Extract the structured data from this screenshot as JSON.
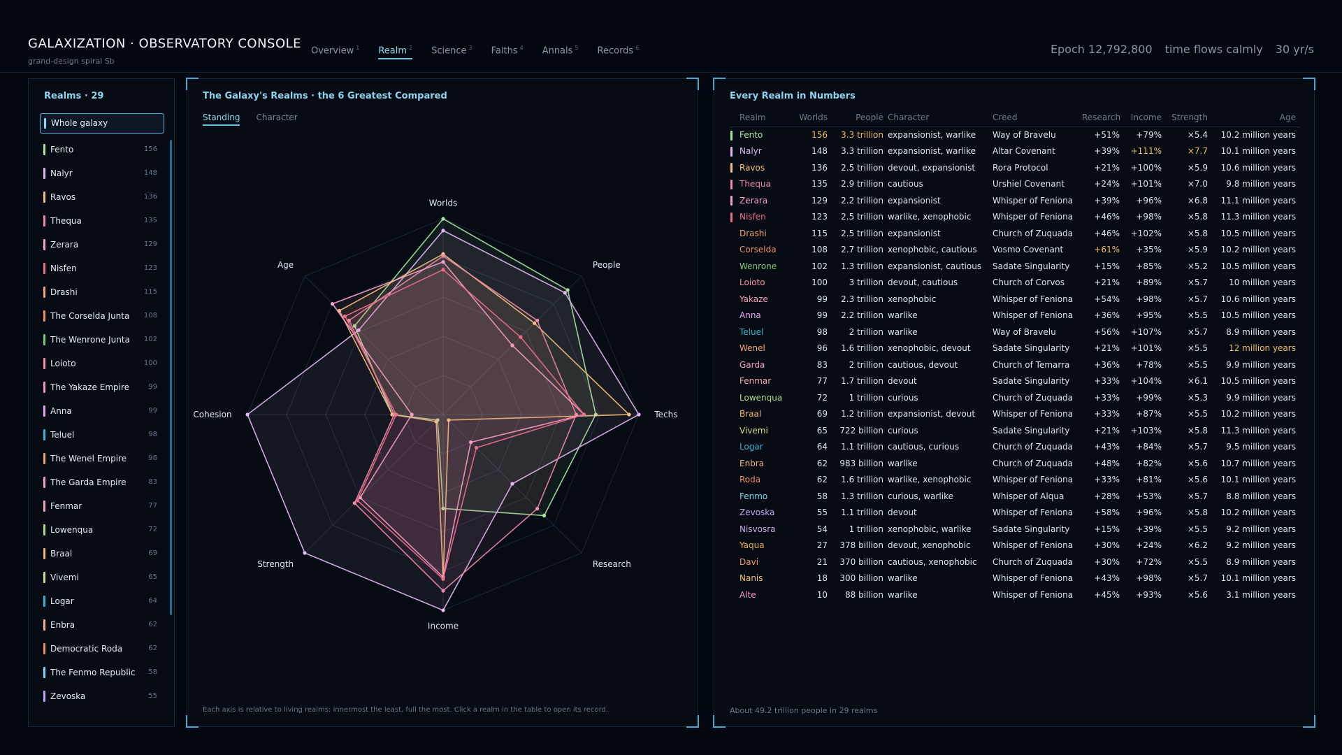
{
  "header": {
    "title": "GALAXIZATION · OBSERVATORY CONSOLE",
    "subtitle": "grand-design spiral Sb",
    "epoch": "Epoch 12,792,800",
    "flow": "time flows calmly",
    "rate": "30 yr/s"
  },
  "nav": {
    "tabs": [
      {
        "label": "Overview",
        "key": "1"
      },
      {
        "label": "Realm",
        "key": "2"
      },
      {
        "label": "Science",
        "key": "3"
      },
      {
        "label": "Faiths",
        "key": "4"
      },
      {
        "label": "Annals",
        "key": "5"
      },
      {
        "label": "Records",
        "key": "6"
      }
    ],
    "active": "Realm"
  },
  "sidebar": {
    "title": "Realms · 29",
    "whole_label": "Whole galaxy",
    "items": [
      {
        "name": "Fento",
        "worlds": "156",
        "color": "#a8e6a1"
      },
      {
        "name": "Nalyr",
        "worlds": "148",
        "color": "#e2b8f2"
      },
      {
        "name": "Ravos",
        "worlds": "136",
        "color": "#f4c27a"
      },
      {
        "name": "Thequa",
        "worlds": "135",
        "color": "#f08aa8"
      },
      {
        "name": "Zerara",
        "worlds": "129",
        "color": "#f7a2c8"
      },
      {
        "name": "Nisfen",
        "worlds": "123",
        "color": "#ee6f8b"
      },
      {
        "name": "Drashi",
        "worlds": "115",
        "color": "#f3a56a"
      },
      {
        "name": "The Corselda Junta",
        "worlds": "108",
        "color": "#f09060"
      },
      {
        "name": "The Wenrone Junta",
        "worlds": "102",
        "color": "#7fca7a"
      },
      {
        "name": "Loioto",
        "worlds": "100",
        "color": "#f58fa6"
      },
      {
        "name": "The Yakaze Empire",
        "worlds": "99",
        "color": "#f79ab8"
      },
      {
        "name": "Anna",
        "worlds": "99",
        "color": "#e6a6ee"
      },
      {
        "name": "Teluel",
        "worlds": "98",
        "color": "#36b5d3"
      },
      {
        "name": "The Wenel Empire",
        "worlds": "96",
        "color": "#f5a070"
      },
      {
        "name": "The Garda Empire",
        "worlds": "83",
        "color": "#f4a0be"
      },
      {
        "name": "Fenmar",
        "worlds": "77",
        "color": "#f3a6b6"
      },
      {
        "name": "Lowenqua",
        "worlds": "72",
        "color": "#b2dc88"
      },
      {
        "name": "Braal",
        "worlds": "69",
        "color": "#f3b867"
      },
      {
        "name": "Vivemi",
        "worlds": "65",
        "color": "#d3df7e"
      },
      {
        "name": "Logar",
        "worlds": "64",
        "color": "#36b5d3"
      },
      {
        "name": "Enbra",
        "worlds": "62",
        "color": "#f3b28a"
      },
      {
        "name": "Democratic Roda",
        "worlds": "62",
        "color": "#f08e62"
      },
      {
        "name": "The Fenmo Republic",
        "worlds": "58",
        "color": "#7ad8f2"
      },
      {
        "name": "Zevoska",
        "worlds": "55",
        "color": "#c4a8f4"
      }
    ]
  },
  "radar": {
    "title": "The Galaxy's Realms · the 6 Greatest Compared",
    "tabs": [
      "Standing",
      "Character"
    ],
    "active_tab": "Standing",
    "axes": [
      "Worlds",
      "People",
      "Techs",
      "Research",
      "Income",
      "Strength",
      "Cohesion",
      "Age"
    ],
    "footnote": "Each axis is relative to living realms: innermost the least, full the most. Click a realm in the table to open its record."
  },
  "chart_data": {
    "type": "radar",
    "axes": [
      "Worlds",
      "People",
      "Techs",
      "Research",
      "Income",
      "Strength",
      "Cohesion",
      "Age"
    ],
    "range": [
      0,
      1
    ],
    "series": [
      {
        "name": "Fento",
        "color": "#a8e6a1",
        "values": [
          1.0,
          0.9,
          0.78,
          0.73,
          0.48,
          0.04,
          0.26,
          0.64
        ]
      },
      {
        "name": "Nalyr",
        "color": "#e2b8f2",
        "values": [
          0.94,
          0.88,
          1.0,
          0.5,
          1.0,
          1.0,
          1.0,
          0.61
        ]
      },
      {
        "name": "Ravos",
        "color": "#f4c27a",
        "values": [
          0.82,
          0.66,
          0.95,
          0.04,
          0.84,
          0.05,
          0.26,
          0.75
        ]
      },
      {
        "name": "Thequa",
        "color": "#f08aa8",
        "values": [
          0.81,
          0.68,
          0.68,
          0.68,
          0.9,
          0.64,
          0.25,
          0.68
        ]
      },
      {
        "name": "Zerara",
        "color": "#f7a2c8",
        "values": [
          0.78,
          0.5,
          0.72,
          0.2,
          0.83,
          0.6,
          0.16,
          0.8
        ]
      },
      {
        "name": "Nisfen",
        "color": "#ee6f8b",
        "values": [
          0.74,
          0.56,
          0.72,
          0.24,
          0.84,
          0.62,
          0.24,
          0.71
        ]
      }
    ]
  },
  "table": {
    "title": "Every Realm in Numbers",
    "columns": [
      "Realm",
      "Worlds",
      "People",
      "Character",
      "Creed",
      "Research",
      "Income",
      "Strength",
      "Age"
    ],
    "rows": [
      {
        "name": "Fento",
        "color": "#a8e6a1",
        "sel": true,
        "worlds": "156",
        "people": "3.3 trillion",
        "character": "expansionist, warlike",
        "creed": "Way of Bravelu",
        "research": "+51%",
        "income": "+79%",
        "strength": "×5.4",
        "age": "10.2 million years",
        "hl": [
          "worlds",
          "people"
        ]
      },
      {
        "name": "Nalyr",
        "color": "#e2b8f2",
        "sel": true,
        "worlds": "148",
        "people": "3.3 trillion",
        "character": "expansionist, warlike",
        "creed": "Altar Covenant",
        "research": "+39%",
        "income": "+111%",
        "strength": "×7.7",
        "age": "10.1 million years",
        "hl": [
          "income",
          "strength"
        ]
      },
      {
        "name": "Ravos",
        "color": "#f4c27a",
        "sel": true,
        "worlds": "136",
        "people": "2.5 trillion",
        "character": "devout, expansionist",
        "creed": "Rora Protocol",
        "research": "+21%",
        "income": "+100%",
        "strength": "×5.9",
        "age": "10.6 million years",
        "hl": []
      },
      {
        "name": "Thequa",
        "color": "#f08aa8",
        "sel": true,
        "worlds": "135",
        "people": "2.9 trillion",
        "character": "cautious",
        "creed": "Urshiel Covenant",
        "research": "+24%",
        "income": "+101%",
        "strength": "×7.0",
        "age": "9.8 million years",
        "hl": []
      },
      {
        "name": "Zerara",
        "color": "#f7a2c8",
        "sel": true,
        "worlds": "129",
        "people": "2.2 trillion",
        "character": "expansionist",
        "creed": "Whisper of Feniona",
        "research": "+39%",
        "income": "+96%",
        "strength": "×6.8",
        "age": "11.1 million years",
        "hl": []
      },
      {
        "name": "Nisfen",
        "color": "#ee6f8b",
        "sel": true,
        "worlds": "123",
        "people": "2.5 trillion",
        "character": "warlike, xenophobic",
        "creed": "Whisper of Feniona",
        "research": "+46%",
        "income": "+98%",
        "strength": "×5.8",
        "age": "11.3 million years",
        "hl": []
      },
      {
        "name": "Drashi",
        "color": "#f3a56a",
        "sel": false,
        "worlds": "115",
        "people": "2.5 trillion",
        "character": "expansionist",
        "creed": "Church of Zuquada",
        "research": "+46%",
        "income": "+102%",
        "strength": "×5.8",
        "age": "10.5 million years",
        "hl": []
      },
      {
        "name": "Corselda",
        "color": "#f09060",
        "sel": false,
        "worlds": "108",
        "people": "2.7 trillion",
        "character": "xenophobic, cautious",
        "creed": "Vosmo Covenant",
        "research": "+61%",
        "income": "+35%",
        "strength": "×5.9",
        "age": "10.2 million years",
        "hl": [
          "research"
        ]
      },
      {
        "name": "Wenrone",
        "color": "#7fca7a",
        "sel": false,
        "worlds": "102",
        "people": "1.3 trillion",
        "character": "expansionist, cautious",
        "creed": "Sadate Singularity",
        "research": "+15%",
        "income": "+85%",
        "strength": "×5.2",
        "age": "10.5 million years",
        "hl": []
      },
      {
        "name": "Loioto",
        "color": "#f58fa6",
        "sel": false,
        "worlds": "100",
        "people": "3 trillion",
        "character": "devout, cautious",
        "creed": "Church of Corvos",
        "research": "+21%",
        "income": "+89%",
        "strength": "×5.7",
        "age": "10 million years",
        "hl": []
      },
      {
        "name": "Yakaze",
        "color": "#f79ab8",
        "sel": false,
        "worlds": "99",
        "people": "2.3 trillion",
        "character": "xenophobic",
        "creed": "Whisper of Feniona",
        "research": "+54%",
        "income": "+98%",
        "strength": "×5.7",
        "age": "10.6 million years",
        "hl": []
      },
      {
        "name": "Anna",
        "color": "#e6a6ee",
        "sel": false,
        "worlds": "99",
        "people": "2.2 trillion",
        "character": "warlike",
        "creed": "Whisper of Feniona",
        "research": "+36%",
        "income": "+95%",
        "strength": "×5.5",
        "age": "10.5 million years",
        "hl": []
      },
      {
        "name": "Teluel",
        "color": "#36b5d3",
        "sel": false,
        "worlds": "98",
        "people": "2 trillion",
        "character": "warlike",
        "creed": "Way of Bravelu",
        "research": "+56%",
        "income": "+107%",
        "strength": "×5.7",
        "age": "8.9 million years",
        "hl": []
      },
      {
        "name": "Wenel",
        "color": "#f5a070",
        "sel": false,
        "worlds": "96",
        "people": "1.6 trillion",
        "character": "xenophobic, devout",
        "creed": "Sadate Singularity",
        "research": "+21%",
        "income": "+101%",
        "strength": "×5.5",
        "age": "12 million years",
        "hl": [
          "age"
        ]
      },
      {
        "name": "Garda",
        "color": "#f4a0be",
        "sel": false,
        "worlds": "83",
        "people": "2 trillion",
        "character": "cautious, devout",
        "creed": "Church of Temarra",
        "research": "+36%",
        "income": "+78%",
        "strength": "×5.5",
        "age": "9.9 million years",
        "hl": []
      },
      {
        "name": "Fenmar",
        "color": "#f3a6b6",
        "sel": false,
        "worlds": "77",
        "people": "1.7 trillion",
        "character": "devout",
        "creed": "Sadate Singularity",
        "research": "+33%",
        "income": "+104%",
        "strength": "×6.1",
        "age": "10.5 million years",
        "hl": []
      },
      {
        "name": "Lowenqua",
        "color": "#b2dc88",
        "sel": false,
        "worlds": "72",
        "people": "1 trillion",
        "character": "curious",
        "creed": "Church of Zuquada",
        "research": "+33%",
        "income": "+99%",
        "strength": "×5.3",
        "age": "9.9 million years",
        "hl": []
      },
      {
        "name": "Braal",
        "color": "#f3b867",
        "sel": false,
        "worlds": "69",
        "people": "1.2 trillion",
        "character": "expansionist, devout",
        "creed": "Whisper of Feniona",
        "research": "+33%",
        "income": "+87%",
        "strength": "×5.5",
        "age": "10.2 million years",
        "hl": []
      },
      {
        "name": "Vivemi",
        "color": "#d3df7e",
        "sel": false,
        "worlds": "65",
        "people": "722 billion",
        "character": "curious",
        "creed": "Sadate Singularity",
        "research": "+21%",
        "income": "+103%",
        "strength": "×5.8",
        "age": "11.3 million years",
        "hl": []
      },
      {
        "name": "Logar",
        "color": "#36b5d3",
        "sel": false,
        "worlds": "64",
        "people": "1.1 trillion",
        "character": "cautious, curious",
        "creed": "Church of Zuquada",
        "research": "+43%",
        "income": "+84%",
        "strength": "×5.7",
        "age": "9.5 million years",
        "hl": []
      },
      {
        "name": "Enbra",
        "color": "#f3b28a",
        "sel": false,
        "worlds": "62",
        "people": "983 billion",
        "character": "warlike",
        "creed": "Church of Zuquada",
        "research": "+48%",
        "income": "+82%",
        "strength": "×5.6",
        "age": "10.7 million years",
        "hl": []
      },
      {
        "name": "Roda",
        "color": "#f08e62",
        "sel": false,
        "worlds": "62",
        "people": "1.6 trillion",
        "character": "warlike, xenophobic",
        "creed": "Whisper of Feniona",
        "research": "+33%",
        "income": "+81%",
        "strength": "×5.6",
        "age": "10.1 million years",
        "hl": []
      },
      {
        "name": "Fenmo",
        "color": "#7ad8f2",
        "sel": false,
        "worlds": "58",
        "people": "1.3 trillion",
        "character": "curious, warlike",
        "creed": "Whisper of Alqua",
        "research": "+28%",
        "income": "+53%",
        "strength": "×5.7",
        "age": "8.8 million years",
        "hl": []
      },
      {
        "name": "Zevoska",
        "color": "#c4a8f4",
        "sel": false,
        "worlds": "55",
        "people": "1.1 trillion",
        "character": "devout",
        "creed": "Whisper of Feniona",
        "research": "+58%",
        "income": "+96%",
        "strength": "×5.8",
        "age": "10.2 million years",
        "hl": []
      },
      {
        "name": "Nisvosra",
        "color": "#d0a8e8",
        "sel": false,
        "worlds": "54",
        "people": "1 trillion",
        "character": "xenophobic, warlike",
        "creed": "Sadate Singularity",
        "research": "+15%",
        "income": "+39%",
        "strength": "×5.5",
        "age": "9.2 million years",
        "hl": []
      },
      {
        "name": "Yaqua",
        "color": "#f0b050",
        "sel": false,
        "worlds": "27",
        "people": "378 billion",
        "character": "devout, xenophobic",
        "creed": "Whisper of Feniona",
        "research": "+30%",
        "income": "+24%",
        "strength": "×6.2",
        "age": "9.2 million years",
        "hl": []
      },
      {
        "name": "Davi",
        "color": "#f09a70",
        "sel": false,
        "worlds": "21",
        "people": "370 billion",
        "character": "cautious, xenophobic",
        "creed": "Church of Zuquada",
        "research": "+30%",
        "income": "+72%",
        "strength": "×5.5",
        "age": "8.9 million years",
        "hl": []
      },
      {
        "name": "Nanis",
        "color": "#f4c070",
        "sel": false,
        "worlds": "18",
        "people": "300 billion",
        "character": "warlike",
        "creed": "Whisper of Feniona",
        "research": "+43%",
        "income": "+98%",
        "strength": "×5.7",
        "age": "10.1 million years",
        "hl": []
      },
      {
        "name": "Alte",
        "color": "#f79ac0",
        "sel": false,
        "worlds": "10",
        "people": "88 billion",
        "character": "warlike",
        "creed": "Whisper of Feniona",
        "research": "+45%",
        "income": "+93%",
        "strength": "×5.6",
        "age": "3.1 million years",
        "hl": []
      }
    ],
    "footer": "About 49.2 trillion people in 29 realms"
  }
}
